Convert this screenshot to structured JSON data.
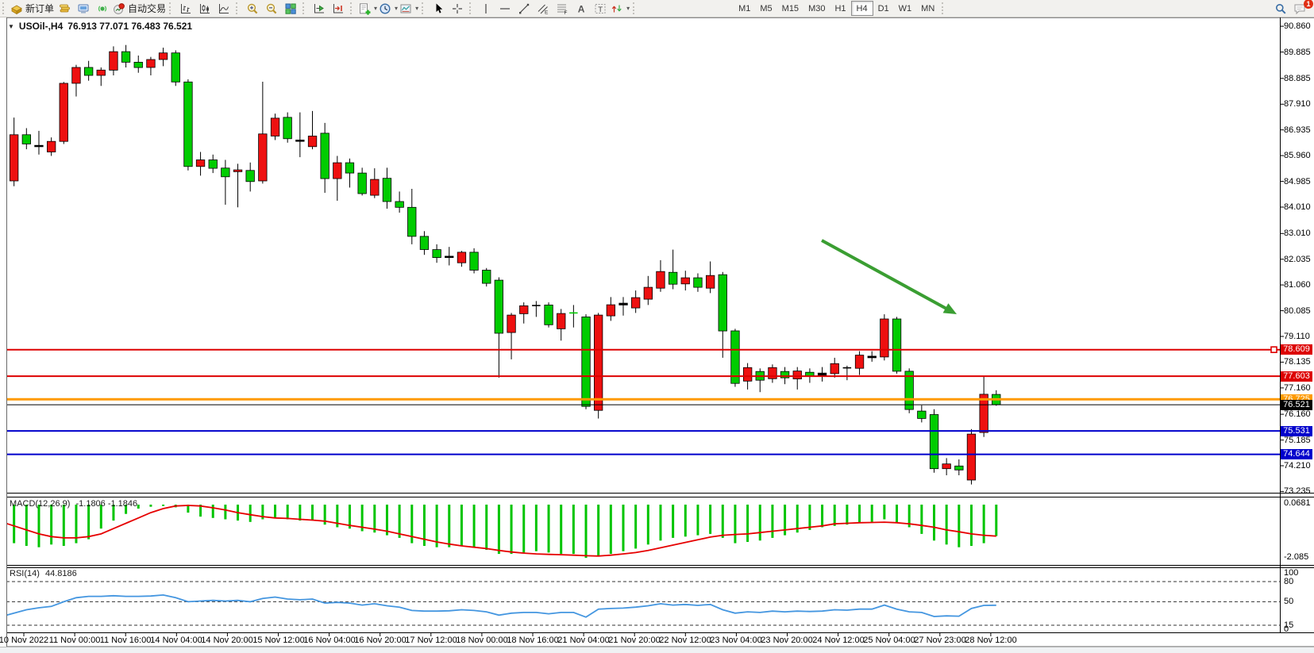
{
  "toolbar": {
    "groups": [
      {
        "name": "orders",
        "items": [
          {
            "name": "new-order-button",
            "icon": "neworder",
            "label": "新订单"
          },
          {
            "name": "chart-gold-icon",
            "icon": "gold"
          },
          {
            "name": "terminal-icon",
            "icon": "terminal"
          },
          {
            "name": "signals-icon",
            "icon": "signal"
          },
          {
            "name": "autotrading-button",
            "icon": "autotrade",
            "label": "自动交易"
          }
        ]
      },
      {
        "name": "chart-types",
        "items": [
          {
            "name": "bar-chart-button",
            "icon": "bars"
          },
          {
            "name": "candlestick-chart-button",
            "icon": "candles"
          },
          {
            "name": "line-chart-button",
            "icon": "linechart"
          }
        ]
      },
      {
        "name": "zoom",
        "items": [
          {
            "name": "zoom-in-button",
            "icon": "zoomin"
          },
          {
            "name": "zoom-out-button",
            "icon": "zoomout"
          },
          {
            "name": "tile-windows-button",
            "icon": "tiles"
          }
        ]
      },
      {
        "name": "navigate",
        "items": [
          {
            "name": "chart-shift-button",
            "icon": "shift"
          },
          {
            "name": "auto-scroll-button",
            "icon": "autoscroll"
          }
        ]
      },
      {
        "name": "insert",
        "items": [
          {
            "name": "indicators-button",
            "icon": "indicators",
            "caret": true
          },
          {
            "name": "periods-button",
            "icon": "clock",
            "caret": true
          },
          {
            "name": "templates-button",
            "icon": "template",
            "caret": true
          }
        ]
      },
      {
        "name": "cursor",
        "items": [
          {
            "name": "cursor-button",
            "icon": "cursor"
          },
          {
            "name": "crosshair-button",
            "icon": "crosshair"
          }
        ]
      },
      {
        "name": "draw",
        "items": [
          {
            "name": "vertical-line-button",
            "icon": "vline"
          },
          {
            "name": "horizontal-line-button",
            "icon": "hline"
          },
          {
            "name": "trendline-button",
            "icon": "trendline"
          },
          {
            "name": "channel-button",
            "icon": "channel"
          },
          {
            "name": "fibonacci-button",
            "icon": "fibo"
          },
          {
            "name": "text-button",
            "icon": "textA"
          },
          {
            "name": "text-label-button",
            "icon": "textbox"
          },
          {
            "name": "arrows-button",
            "icon": "arrows",
            "caret": true
          }
        ]
      },
      {
        "name": "timeframes",
        "items": [
          {
            "name": "timeframe-m1",
            "label": "M1",
            "tf": true
          },
          {
            "name": "timeframe-m5",
            "label": "M5",
            "tf": true
          },
          {
            "name": "timeframe-m15",
            "label": "M15",
            "tf": true
          },
          {
            "name": "timeframe-m30",
            "label": "M30",
            "tf": true
          },
          {
            "name": "timeframe-h1",
            "label": "H1",
            "tf": true
          },
          {
            "name": "timeframe-h4",
            "label": "H4",
            "tf": true,
            "selected": true
          },
          {
            "name": "timeframe-d1",
            "label": "D1",
            "tf": true
          },
          {
            "name": "timeframe-w1",
            "label": "W1",
            "tf": true
          },
          {
            "name": "timeframe-mn",
            "label": "MN",
            "tf": true
          }
        ]
      },
      {
        "name": "right",
        "items": [
          {
            "name": "search-icon",
            "icon": "search"
          },
          {
            "name": "chat-icon",
            "icon": "chat",
            "badge": "1"
          }
        ]
      }
    ]
  },
  "chart": {
    "symbol_label": "USOil-,H4",
    "ohlc_text": "76.913 77.071 76.483 76.521",
    "collapse_glyph": "▼",
    "price_axis_labels": [
      "90.860",
      "89.885",
      "88.885",
      "87.910",
      "86.935",
      "85.960",
      "84.985",
      "84.010",
      "83.010",
      "82.035",
      "81.060",
      "80.085",
      "79.110",
      "78.135",
      "77.160",
      "76.160",
      "75.185",
      "74.210",
      "73.235"
    ],
    "hlines": [
      {
        "value": 78.609,
        "label": "78.609",
        "color": "#dd0000",
        "width": 2,
        "handle": true
      },
      {
        "value": 77.603,
        "label": "77.603",
        "color": "#dd0000",
        "width": 2
      },
      {
        "value": 76.725,
        "label": "76.725",
        "color": "#ff9a00",
        "width": 3
      },
      {
        "value": 76.521,
        "label": "76.521",
        "color": "#000000",
        "width": 1
      },
      {
        "value": 75.531,
        "label": "75.531",
        "color": "#0000cc",
        "width": 2
      },
      {
        "value": 74.644,
        "label": "74.644",
        "color": "#0000cc",
        "width": 2
      }
    ],
    "time_axis": [
      "10 Nov 2022",
      "11 Nov 00:00",
      "11 Nov 16:00",
      "14 Nov 04:00",
      "14 Nov 20:00",
      "15 Nov 12:00",
      "16 Nov 04:00",
      "16 Nov 20:00",
      "17 Nov 12:00",
      "18 Nov 00:00",
      "18 Nov 16:00",
      "21 Nov 04:00",
      "21 Nov 20:00",
      "22 Nov 12:00",
      "23 Nov 04:00",
      "23 Nov 20:00",
      "24 Nov 12:00",
      "25 Nov 04:00",
      "27 Nov 23:00",
      "28 Nov 12:00"
    ],
    "annotation_arrow": {
      "from": [
        1035,
        303
      ],
      "to": [
        1192,
        389
      ],
      "color": "#3a9e32"
    }
  },
  "indicators": {
    "macd": {
      "label": "MACD(12,26,9)",
      "values": "-1.1806 -1.1846",
      "axis": [
        {
          "text": "0.0681",
          "v": 0.0681
        },
        {
          "text": "-2.085",
          "v": -2.085
        }
      ],
      "hist_color": "#00c400",
      "signal_color": "#e60000"
    },
    "rsi": {
      "label": "RSI(14)",
      "value": "44.8186",
      "axis": [
        {
          "text": "100",
          "v": 100
        },
        {
          "text": "80",
          "v": 80
        },
        {
          "text": "50",
          "v": 50
        },
        {
          "text": "15",
          "v": 15
        },
        {
          "text": "0",
          "v": 0
        }
      ],
      "levels": [
        80,
        50,
        15
      ],
      "line_color": "#4496e0"
    }
  },
  "colors": {
    "up": "#ee1010",
    "down": "#00cc00",
    "wick": "#000000",
    "hline_handle": "#dd0000"
  },
  "chart_data": {
    "type": "candlestick",
    "title": "USOil-,H4",
    "symbol": "USOil",
    "timeframe": "H4",
    "current_ohlc": {
      "open": 76.913,
      "high": 77.071,
      "low": 76.483,
      "close": 76.521
    },
    "price_range": [
      73.235,
      90.86
    ],
    "note": "red = bullish, green = bearish (CN convention); flag d = dimmed partial bar, k = black doji",
    "ohlc": [
      [
        84.9,
        86.1,
        84.7,
        86.0,
        "d"
      ],
      [
        85.0,
        87.4,
        84.8,
        86.75
      ],
      [
        86.75,
        87.0,
        86.2,
        86.4
      ],
      [
        86.3,
        86.9,
        86.0,
        86.35,
        "k"
      ],
      [
        86.1,
        86.65,
        85.95,
        86.5
      ],
      [
        86.5,
        88.75,
        86.4,
        88.7
      ],
      [
        88.7,
        89.4,
        88.2,
        89.3
      ],
      [
        89.3,
        89.55,
        88.8,
        89.0
      ],
      [
        89.0,
        89.3,
        88.6,
        89.2
      ],
      [
        89.2,
        90.1,
        89.0,
        89.9
      ],
      [
        89.9,
        90.15,
        89.3,
        89.5
      ],
      [
        89.5,
        89.75,
        89.1,
        89.3
      ],
      [
        89.3,
        89.7,
        89.0,
        89.6
      ],
      [
        89.6,
        90.05,
        89.35,
        89.85
      ],
      [
        89.85,
        89.95,
        88.6,
        88.75
      ],
      [
        88.75,
        88.85,
        85.4,
        85.55
      ],
      [
        85.55,
        86.1,
        85.2,
        85.8
      ],
      [
        85.8,
        86.0,
        85.3,
        85.48
      ],
      [
        85.49,
        85.8,
        84.1,
        85.16
      ],
      [
        85.35,
        85.65,
        84.0,
        85.42
      ],
      [
        85.4,
        85.7,
        84.6,
        84.98
      ],
      [
        85.0,
        88.76,
        84.9,
        86.78
      ],
      [
        86.7,
        87.55,
        86.55,
        87.38
      ],
      [
        87.41,
        87.6,
        86.45,
        86.6
      ],
      [
        86.5,
        87.6,
        85.9,
        86.55,
        "k"
      ],
      [
        86.3,
        87.65,
        86.2,
        86.7
      ],
      [
        86.81,
        87.2,
        84.55,
        85.09
      ],
      [
        85.09,
        85.95,
        84.25,
        85.69
      ],
      [
        85.69,
        85.85,
        84.75,
        85.3
      ],
      [
        85.3,
        85.5,
        84.45,
        84.52
      ],
      [
        84.46,
        85.48,
        84.35,
        85.06
      ],
      [
        85.1,
        85.5,
        83.95,
        84.22
      ],
      [
        84.22,
        84.6,
        83.8,
        84.0
      ],
      [
        84.0,
        84.7,
        82.6,
        82.9
      ],
      [
        82.9,
        83.1,
        82.2,
        82.4
      ],
      [
        82.4,
        82.6,
        81.9,
        82.1
      ],
      [
        82.1,
        82.5,
        81.8,
        82.15,
        "k"
      ],
      [
        81.9,
        82.35,
        81.75,
        82.3
      ],
      [
        82.3,
        82.45,
        81.5,
        81.62
      ],
      [
        81.62,
        81.7,
        81.0,
        81.12
      ],
      [
        81.24,
        81.35,
        77.55,
        79.23
      ],
      [
        79.26,
        80.0,
        78.24,
        79.92
      ],
      [
        79.97,
        80.4,
        79.6,
        80.27
      ],
      [
        80.25,
        80.45,
        79.85,
        80.28,
        "k"
      ],
      [
        80.3,
        80.4,
        79.45,
        79.55
      ],
      [
        79.4,
        80.15,
        78.95,
        79.98
      ],
      [
        80.0,
        80.3,
        79.45,
        79.97
      ],
      [
        79.85,
        79.95,
        76.35,
        76.46
      ],
      [
        76.31,
        80.0,
        76.0,
        79.92
      ],
      [
        79.89,
        80.6,
        79.7,
        80.31
      ],
      [
        80.3,
        80.6,
        79.9,
        80.37,
        "k"
      ],
      [
        80.19,
        80.85,
        80.0,
        80.58
      ],
      [
        80.52,
        81.4,
        80.3,
        80.97
      ],
      [
        80.94,
        82.0,
        80.8,
        81.57
      ],
      [
        81.54,
        82.4,
        80.9,
        81.09
      ],
      [
        81.1,
        81.6,
        80.85,
        81.33
      ],
      [
        81.33,
        81.5,
        80.8,
        80.97
      ],
      [
        80.94,
        81.95,
        80.75,
        81.42
      ],
      [
        81.45,
        81.55,
        78.3,
        79.32
      ],
      [
        79.32,
        79.4,
        77.2,
        77.33
      ],
      [
        77.42,
        78.1,
        77.1,
        77.93
      ],
      [
        77.78,
        77.9,
        77.0,
        77.45
      ],
      [
        77.51,
        78.05,
        77.35,
        77.93
      ],
      [
        77.78,
        77.95,
        77.3,
        77.54
      ],
      [
        77.5,
        77.95,
        77.1,
        77.8
      ],
      [
        77.75,
        77.9,
        77.35,
        77.6
      ],
      [
        77.6,
        77.95,
        77.4,
        77.72,
        "k"
      ],
      [
        77.7,
        78.3,
        77.55,
        78.08
      ],
      [
        77.92,
        78.0,
        77.45,
        77.9,
        "k"
      ],
      [
        77.9,
        78.55,
        77.65,
        78.4
      ],
      [
        78.3,
        78.55,
        78.15,
        78.36,
        "k"
      ],
      [
        78.33,
        79.95,
        78.2,
        79.77
      ],
      [
        79.77,
        79.85,
        77.7,
        77.79
      ],
      [
        77.79,
        77.9,
        76.2,
        76.34
      ],
      [
        76.28,
        76.5,
        75.85,
        76.0
      ],
      [
        76.15,
        76.35,
        73.95,
        74.1
      ],
      [
        74.1,
        74.5,
        73.85,
        74.28
      ],
      [
        74.2,
        74.45,
        73.85,
        74.05
      ],
      [
        73.67,
        75.6,
        73.5,
        75.41
      ],
      [
        75.47,
        77.6,
        75.3,
        76.92
      ],
      [
        76.913,
        77.071,
        76.483,
        76.521
      ]
    ],
    "macd_hist": [
      -1.35,
      -1.45,
      -1.55,
      -1.6,
      -1.5,
      -1.55,
      -1.45,
      -1.3,
      -0.9,
      -0.6,
      -0.35,
      -0.15,
      -0.08,
      -0.05,
      -0.1,
      -0.3,
      -0.45,
      -0.5,
      -0.55,
      -0.6,
      -0.65,
      -0.55,
      -0.5,
      -0.55,
      -0.6,
      -0.6,
      -0.75,
      -0.85,
      -0.9,
      -1.0,
      -1.05,
      -1.15,
      -1.25,
      -1.45,
      -1.55,
      -1.6,
      -1.6,
      -1.55,
      -1.6,
      -1.7,
      -1.85,
      -1.85,
      -1.8,
      -1.75,
      -1.8,
      -1.85,
      -1.85,
      -2.0,
      -1.95,
      -1.85,
      -1.75,
      -1.65,
      -1.5,
      -1.35,
      -1.25,
      -1.2,
      -1.15,
      -1.1,
      -1.25,
      -1.45,
      -1.4,
      -1.35,
      -1.25,
      -1.15,
      -1.05,
      -0.95,
      -0.85,
      -0.8,
      -0.75,
      -0.7,
      -0.65,
      -0.55,
      -0.7,
      -0.85,
      -1.1,
      -1.35,
      -1.5,
      -1.6,
      -1.55,
      -1.45,
      -1.18
    ],
    "macd_signal": [
      -0.65,
      -0.8,
      -0.95,
      -1.1,
      -1.2,
      -1.25,
      -1.25,
      -1.2,
      -1.1,
      -0.9,
      -0.7,
      -0.5,
      -0.3,
      -0.15,
      -0.05,
      -0.03,
      -0.05,
      -0.12,
      -0.2,
      -0.3,
      -0.38,
      -0.45,
      -0.5,
      -0.52,
      -0.55,
      -0.58,
      -0.62,
      -0.7,
      -0.78,
      -0.85,
      -0.92,
      -1.0,
      -1.1,
      -1.2,
      -1.3,
      -1.4,
      -1.48,
      -1.55,
      -1.6,
      -1.65,
      -1.72,
      -1.78,
      -1.82,
      -1.85,
      -1.87,
      -1.88,
      -1.9,
      -1.92,
      -1.93,
      -1.9,
      -1.85,
      -1.8,
      -1.72,
      -1.62,
      -1.52,
      -1.42,
      -1.32,
      -1.22,
      -1.15,
      -1.12,
      -1.1,
      -1.05,
      -1.0,
      -0.95,
      -0.9,
      -0.85,
      -0.8,
      -0.72,
      -0.7,
      -0.68,
      -0.67,
      -0.66,
      -0.68,
      -0.72,
      -0.78,
      -0.85,
      -0.95,
      -1.02,
      -1.1,
      -1.15,
      -1.1846
    ],
    "rsi": [
      28,
      33,
      38,
      41,
      43,
      50,
      56,
      58,
      58,
      59,
      58,
      58,
      58.5,
      60,
      56,
      50,
      51,
      52,
      51,
      52,
      50,
      55,
      57,
      54,
      53,
      54,
      48,
      49,
      48,
      45,
      47,
      44,
      42,
      37,
      36,
      36,
      36.5,
      38,
      37,
      35,
      30,
      33,
      34,
      34,
      32,
      34,
      34,
      27,
      39,
      40,
      40.5,
      42,
      44,
      47,
      45,
      46,
      44.5,
      46,
      38,
      33,
      35,
      34,
      36,
      35,
      36,
      35.5,
      36,
      38,
      37.5,
      39,
      39,
      45,
      39,
      35,
      34,
      28,
      29,
      28.5,
      40,
      44.5,
      44.8
    ],
    "macd_range": [
      -2.085,
      0.0681
    ],
    "rsi_range": [
      0,
      100
    ]
  }
}
